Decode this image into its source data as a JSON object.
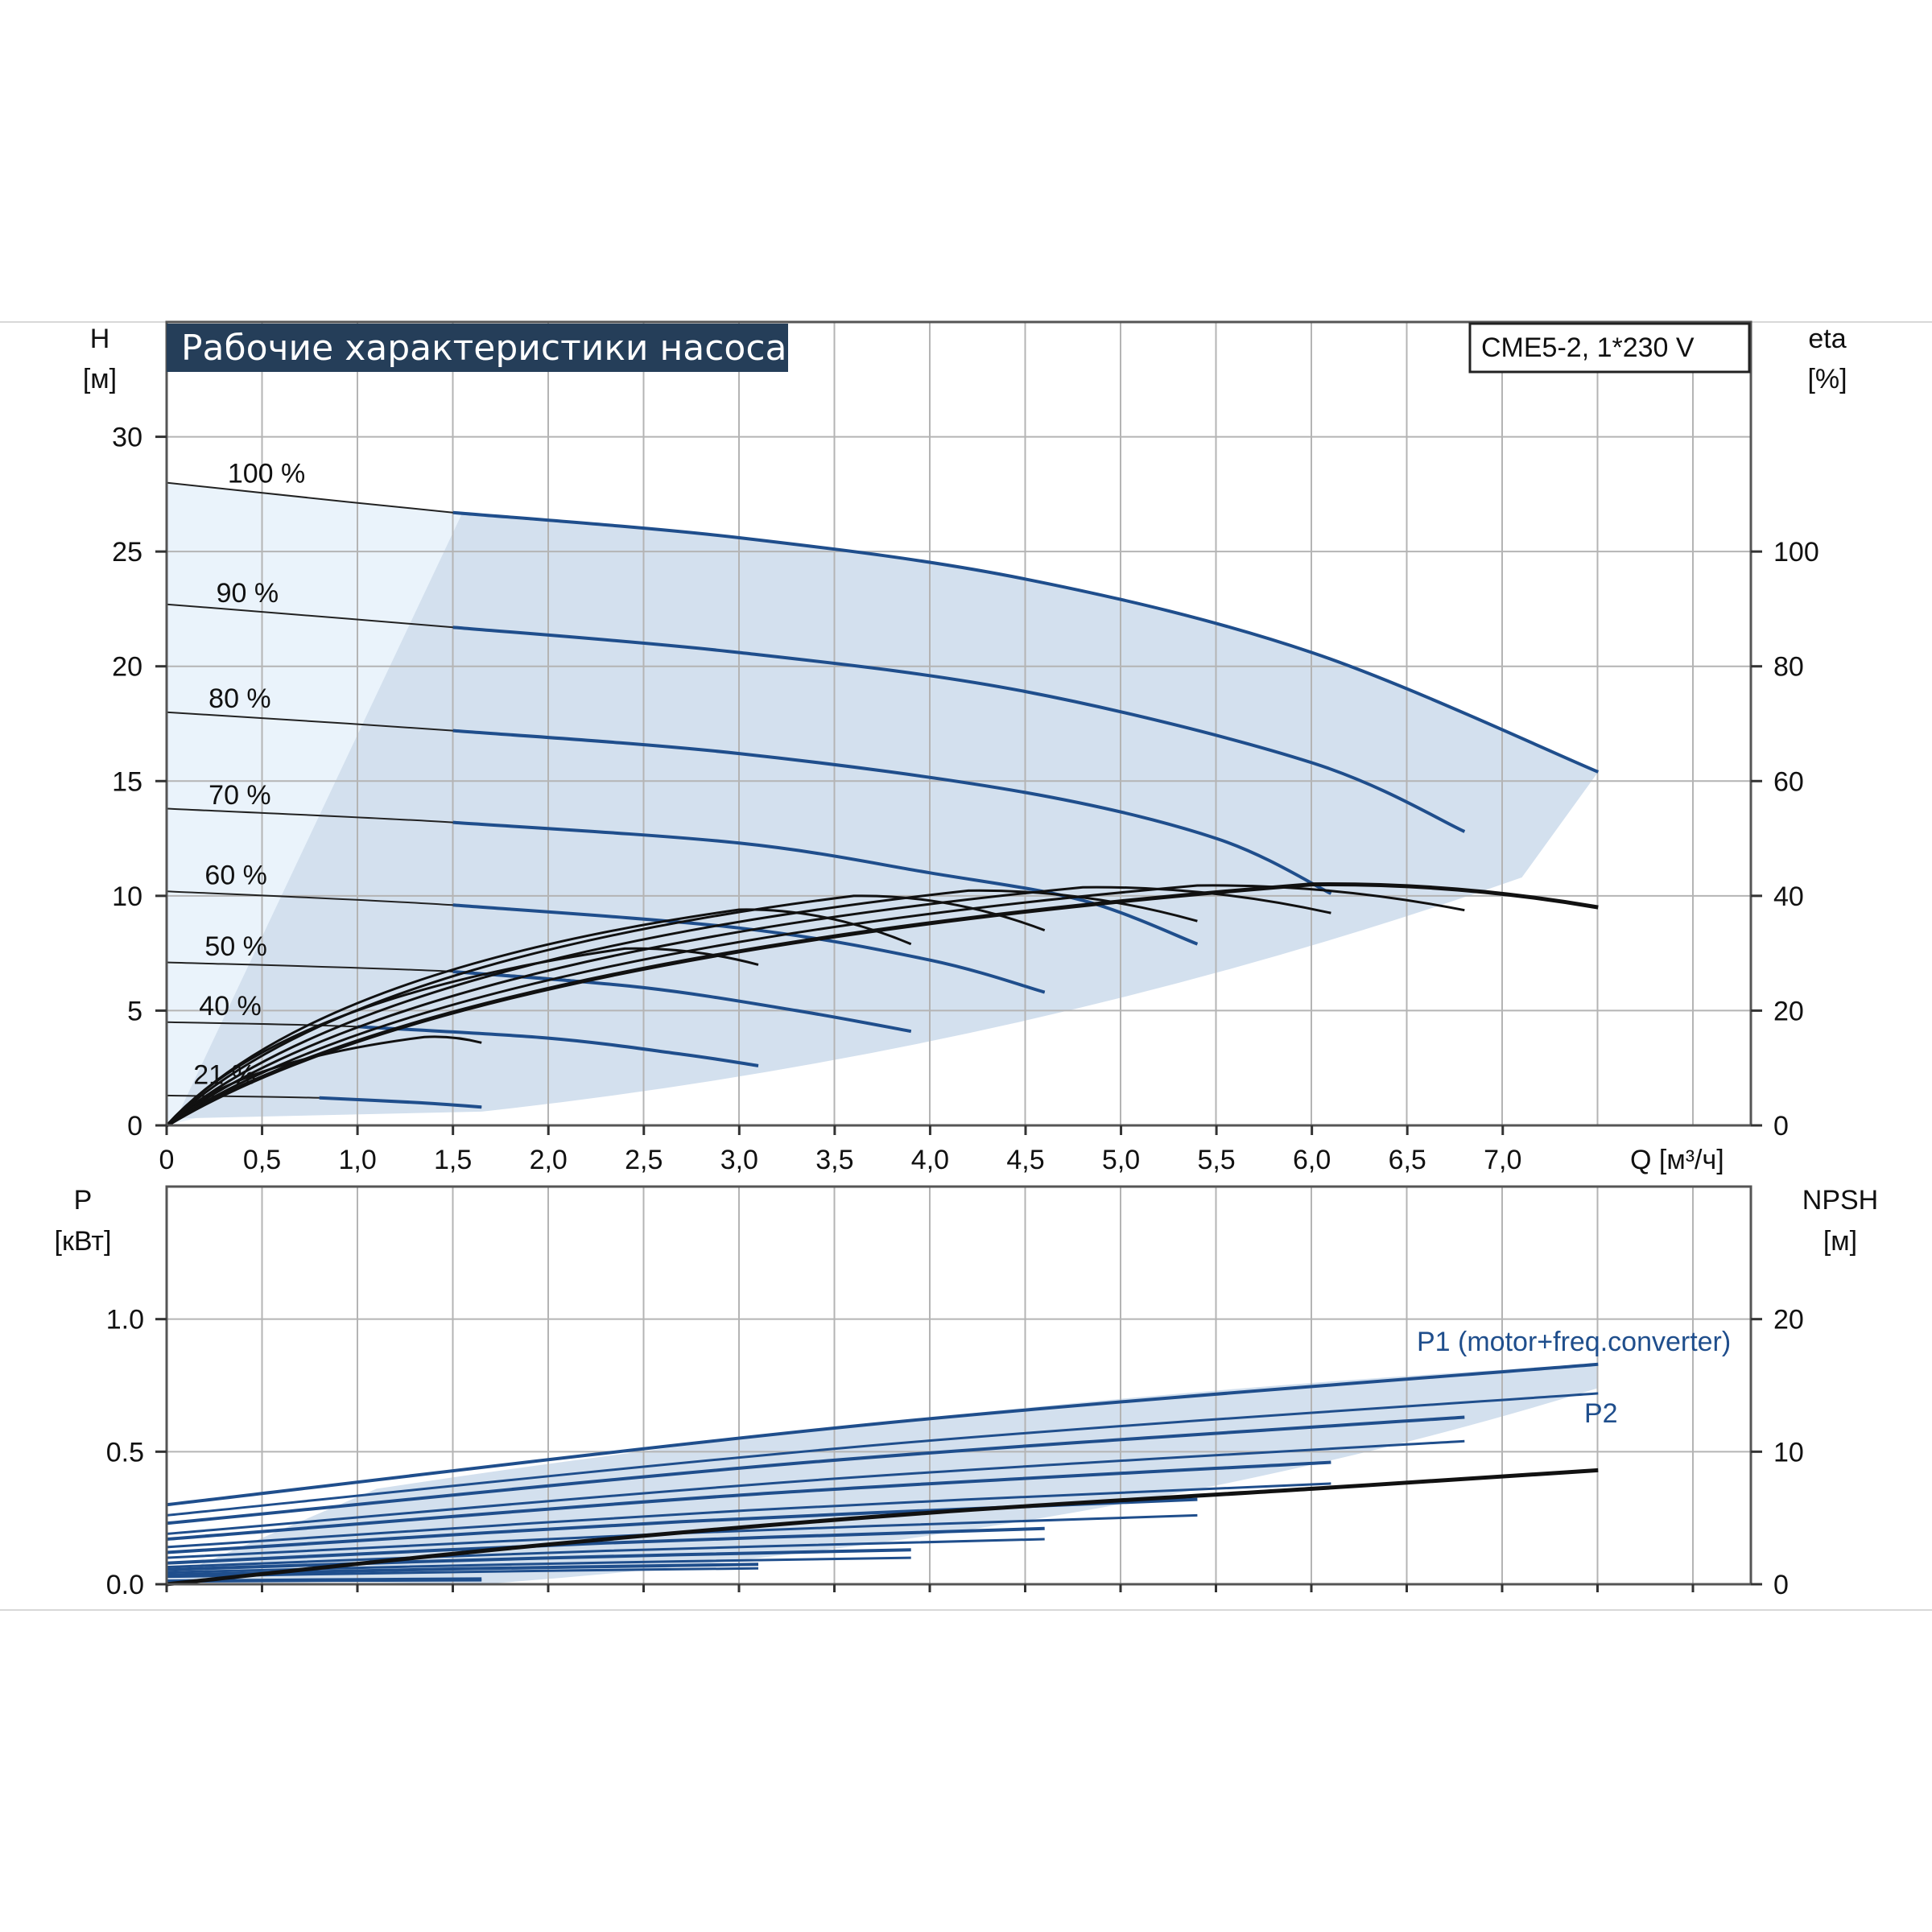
{
  "title": "Рабочие характеристики насоса",
  "model": "CME5-2, 1*230 V",
  "colors": {
    "curve_blue": "#1f4e8c",
    "area_fill": "#d3e0ee",
    "area_light": "#eaf3fb",
    "grid": "#b4b4b4",
    "title_bg": "#253e59",
    "efficiency": "#111111"
  },
  "chart_data": [
    {
      "type": "line",
      "panel": "head",
      "ylabel": "H",
      "yunit": "[м]",
      "y2label": "eta",
      "y2unit": "[%]",
      "xlabel": "Q [м³/ч]",
      "xlim": [
        0,
        8.3
      ],
      "ylim": [
        0,
        35
      ],
      "y2lim": [
        0,
        140
      ],
      "grid": true,
      "x_ticks": [
        "0",
        "0,5",
        "1,0",
        "1,5",
        "2,0",
        "2,5",
        "3,0",
        "3,5",
        "4,0",
        "4,5",
        "5,0",
        "5,5",
        "6,0",
        "6,5",
        "7,0"
      ],
      "y_ticks": [
        "0",
        "5",
        "10",
        "15",
        "20",
        "25",
        "30"
      ],
      "y2_ticks": [
        "0",
        "20",
        "40",
        "60",
        "80",
        "100"
      ],
      "head_curves": [
        {
          "label": "100 %",
          "points": [
            [
              0,
              28.0
            ],
            [
              1.5,
              26.7
            ],
            [
              3.0,
              25.6
            ],
            [
              4.5,
              23.8
            ],
            [
              6.0,
              20.6
            ],
            [
              7.5,
              15.4
            ]
          ]
        },
        {
          "label": "90 %",
          "points": [
            [
              0,
              22.7
            ],
            [
              1.5,
              21.7
            ],
            [
              3.0,
              20.6
            ],
            [
              4.5,
              18.9
            ],
            [
              6.0,
              15.8
            ],
            [
              6.8,
              12.8
            ]
          ]
        },
        {
          "label": "80 %",
          "points": [
            [
              0,
              18.0
            ],
            [
              1.5,
              17.2
            ],
            [
              3.0,
              16.2
            ],
            [
              4.5,
              14.5
            ],
            [
              5.5,
              12.5
            ],
            [
              6.1,
              10.1
            ]
          ]
        },
        {
          "label": "70 %",
          "points": [
            [
              0,
              13.8
            ],
            [
              1.5,
              13.2
            ],
            [
              3.0,
              12.3
            ],
            [
              4.0,
              11.0
            ],
            [
              4.8,
              9.8
            ],
            [
              5.4,
              7.9
            ]
          ]
        },
        {
          "label": "60 %",
          "points": [
            [
              0,
              10.2
            ],
            [
              1.5,
              9.6
            ],
            [
              3.0,
              8.6
            ],
            [
              4.0,
              7.2
            ],
            [
              4.6,
              5.8
            ]
          ]
        },
        {
          "label": "50 %",
          "points": [
            [
              0,
              7.1
            ],
            [
              1.5,
              6.7
            ],
            [
              2.5,
              6.0
            ],
            [
              3.3,
              5.0
            ],
            [
              3.9,
              4.1
            ]
          ]
        },
        {
          "label": "40 %",
          "points": [
            [
              0,
              4.5
            ],
            [
              1.0,
              4.3
            ],
            [
              2.0,
              3.8
            ],
            [
              2.7,
              3.1
            ],
            [
              3.1,
              2.6
            ]
          ]
        },
        {
          "label": "21 %",
          "points": [
            [
              0,
              1.3
            ],
            [
              0.8,
              1.2
            ],
            [
              1.3,
              1.0
            ],
            [
              1.65,
              0.8
            ]
          ]
        }
      ],
      "efficiency_curves": [
        {
          "speed": "100 %",
          "peak_q": 6.0,
          "peak_eta": 42.0,
          "end_q": 7.5,
          "end_eta": 38.0
        },
        {
          "speed": "90 %",
          "peak_q": 5.4,
          "peak_eta": 41.8,
          "end_q": 6.8,
          "end_eta": 37.5
        },
        {
          "speed": "80 %",
          "peak_q": 4.8,
          "peak_eta": 41.5,
          "end_q": 6.1,
          "end_eta": 37.0
        },
        {
          "speed": "70 %",
          "peak_q": 4.2,
          "peak_eta": 40.9,
          "end_q": 5.4,
          "end_eta": 35.6
        },
        {
          "speed": "60 %",
          "peak_q": 3.6,
          "peak_eta": 40.0,
          "end_q": 4.6,
          "end_eta": 34.0
        },
        {
          "speed": "50 %",
          "peak_q": 3.0,
          "peak_eta": 37.6,
          "end_q": 3.9,
          "end_eta": 31.6
        },
        {
          "speed": "40 %",
          "peak_q": 2.4,
          "peak_eta": 30.8,
          "end_q": 3.1,
          "end_eta": 28.0
        },
        {
          "speed": "21 %",
          "peak_q": 1.35,
          "peak_eta": 15.4,
          "end_q": 1.65,
          "end_eta": 14.4
        }
      ]
    },
    {
      "type": "line",
      "panel": "power",
      "ylabel": "P",
      "yunit": "[кВт]",
      "y2label": "NPSH",
      "y2unit": "[м]",
      "ylim": [
        0,
        1.5
      ],
      "y2lim": [
        0,
        30
      ],
      "grid": true,
      "y_ticks": [
        "0.0",
        "0.5",
        "1.0"
      ],
      "y2_ticks": [
        "0",
        "10",
        "20"
      ],
      "series_labels": [
        "P1 (motor+freq.converter)",
        "P2"
      ],
      "p1_curves": [
        {
          "speed": "100 %",
          "points": [
            [
              0,
              0.3
            ],
            [
              7.5,
              0.83
            ]
          ]
        },
        {
          "speed": "90 %",
          "points": [
            [
              0,
              0.23
            ],
            [
              6.8,
              0.63
            ]
          ]
        },
        {
          "speed": "80 %",
          "points": [
            [
              0,
              0.17
            ],
            [
              6.1,
              0.46
            ]
          ]
        },
        {
          "speed": "70 %",
          "points": [
            [
              0,
              0.12
            ],
            [
              5.4,
              0.32
            ]
          ]
        },
        {
          "speed": "60 %",
          "points": [
            [
              0,
              0.08
            ],
            [
              4.6,
              0.21
            ]
          ]
        },
        {
          "speed": "50 %",
          "points": [
            [
              0,
              0.055
            ],
            [
              3.9,
              0.13
            ]
          ]
        },
        {
          "speed": "40 %",
          "points": [
            [
              0,
              0.035
            ],
            [
              3.1,
              0.075
            ]
          ]
        },
        {
          "speed": "21 %",
          "points": [
            [
              0,
              0.012
            ],
            [
              1.65,
              0.02
            ]
          ]
        }
      ],
      "p2_curves": [
        {
          "speed": "100 %",
          "points": [
            [
              0,
              0.26
            ],
            [
              7.5,
              0.72
            ]
          ]
        },
        {
          "speed": "90 %",
          "points": [
            [
              0,
              0.19
            ],
            [
              6.8,
              0.54
            ]
          ]
        },
        {
          "speed": "80 %",
          "points": [
            [
              0,
              0.14
            ],
            [
              6.1,
              0.38
            ]
          ]
        },
        {
          "speed": "70 %",
          "points": [
            [
              0,
              0.1
            ],
            [
              5.4,
              0.26
            ]
          ]
        },
        {
          "speed": "60 %",
          "points": [
            [
              0,
              0.065
            ],
            [
              4.6,
              0.17
            ]
          ]
        },
        {
          "speed": "50 %",
          "points": [
            [
              0,
              0.045
            ],
            [
              3.9,
              0.1
            ]
          ]
        },
        {
          "speed": "40 %",
          "points": [
            [
              0,
              0.028
            ],
            [
              3.1,
              0.06
            ]
          ]
        },
        {
          "speed": "21 %",
          "points": [
            [
              0,
              0.01
            ],
            [
              1.65,
              0.015
            ]
          ]
        }
      ],
      "npsh_curve": {
        "points": [
          [
            0,
            0.0
          ],
          [
            2.0,
            3.0
          ],
          [
            4.0,
            5.4
          ],
          [
            6.0,
            7.2
          ],
          [
            7.5,
            8.6
          ]
        ]
      }
    }
  ]
}
